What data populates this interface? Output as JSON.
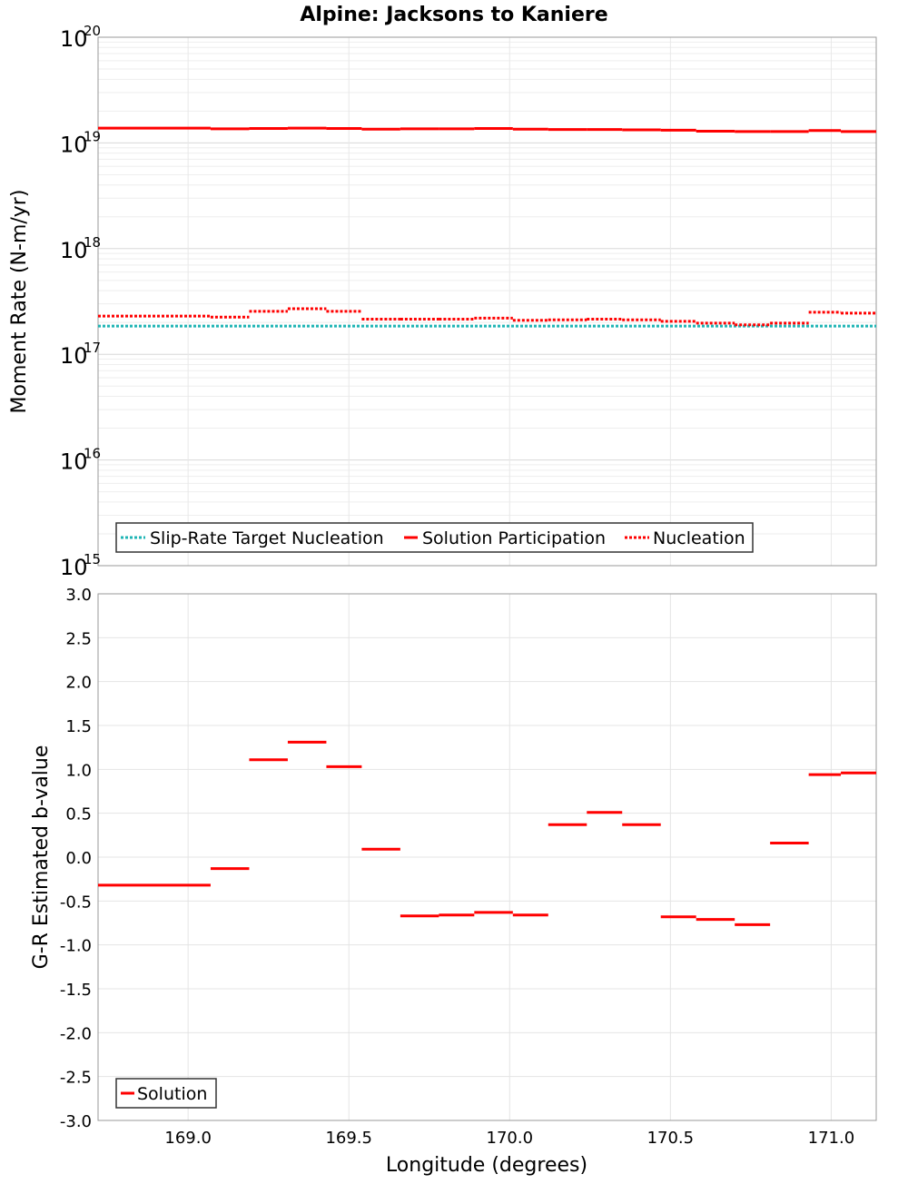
{
  "chart_data": [
    {
      "type": "line",
      "title": "Alpine: Jacksons to Kaniere",
      "ylabel": "Moment Rate (N-m/yr)",
      "xlabel": "",
      "yscale": "log",
      "ylim": [
        1000000000000000.0,
        1e+20
      ],
      "xlim": [
        168.72,
        171.14
      ],
      "grid": true,
      "legend_position": "bottom-left",
      "y_ticks": [
        {
          "base": "10",
          "exp": "15",
          "value": 1000000000000000.0
        },
        {
          "base": "10",
          "exp": "16",
          "value": 1e+16
        },
        {
          "base": "10",
          "exp": "17",
          "value": 1e+17
        },
        {
          "base": "10",
          "exp": "18",
          "value": 1e+18
        },
        {
          "base": "10",
          "exp": "19",
          "value": 1e+19
        },
        {
          "base": "10",
          "exp": "20",
          "value": 1e+20
        }
      ],
      "series": [
        {
          "name": "Slip-Rate Target Nucleation",
          "color": "#1fb5b5",
          "style": "dotted",
          "segments": [
            [
              168.72,
              171.14,
              1.85e+17
            ]
          ]
        },
        {
          "name": "Solution Participation",
          "color": "#ff0000",
          "style": "solid",
          "segments": [
            [
              168.72,
              169.07,
              1.38e+19
            ],
            [
              169.07,
              169.19,
              1.36e+19
            ],
            [
              169.19,
              169.31,
              1.37e+19
            ],
            [
              169.31,
              169.43,
              1.38e+19
            ],
            [
              169.43,
              169.54,
              1.37e+19
            ],
            [
              169.54,
              169.66,
              1.35e+19
            ],
            [
              169.66,
              169.78,
              1.36e+19
            ],
            [
              169.78,
              169.89,
              1.36e+19
            ],
            [
              169.89,
              170.01,
              1.37e+19
            ],
            [
              170.01,
              170.12,
              1.35e+19
            ],
            [
              170.12,
              170.24,
              1.34e+19
            ],
            [
              170.24,
              170.35,
              1.34e+19
            ],
            [
              170.35,
              170.47,
              1.33e+19
            ],
            [
              170.47,
              170.58,
              1.32e+19
            ],
            [
              170.58,
              170.7,
              1.29e+19
            ],
            [
              170.7,
              170.81,
              1.28e+19
            ],
            [
              170.81,
              170.93,
              1.28e+19
            ],
            [
              170.93,
              171.03,
              1.31e+19
            ],
            [
              171.03,
              171.14,
              1.28e+19
            ]
          ]
        },
        {
          "name": "Nucleation",
          "color": "#ff0000",
          "style": "dotted",
          "segments": [
            [
              168.72,
              169.07,
              2.3e+17
            ],
            [
              169.07,
              169.19,
              2.25e+17
            ],
            [
              169.19,
              169.31,
              2.55e+17
            ],
            [
              169.31,
              169.43,
              2.7e+17
            ],
            [
              169.43,
              169.54,
              2.55e+17
            ],
            [
              169.54,
              169.66,
              2.15e+17
            ],
            [
              169.66,
              169.78,
              2.15e+17
            ],
            [
              169.78,
              169.89,
              2.15e+17
            ],
            [
              169.89,
              170.01,
              2.2e+17
            ],
            [
              170.01,
              170.12,
              2.1e+17
            ],
            [
              170.12,
              170.24,
              2.12e+17
            ],
            [
              170.24,
              170.35,
              2.15e+17
            ],
            [
              170.35,
              170.47,
              2.12e+17
            ],
            [
              170.47,
              170.58,
              2.05e+17
            ],
            [
              170.58,
              170.7,
              1.97e+17
            ],
            [
              170.7,
              170.81,
              1.9e+17
            ],
            [
              170.81,
              170.93,
              1.97e+17
            ],
            [
              170.93,
              171.03,
              2.5e+17
            ],
            [
              171.03,
              171.14,
              2.45e+17
            ]
          ]
        }
      ]
    },
    {
      "type": "line",
      "title": "",
      "ylabel": "G-R Estimated b-value",
      "xlabel": "Longitude (degrees)",
      "ylim": [
        -3.0,
        3.0
      ],
      "xlim": [
        168.72,
        171.14
      ],
      "grid": true,
      "legend_position": "bottom-left",
      "y_ticks": [
        "-3.0",
        "-2.5",
        "-2.0",
        "-1.5",
        "-1.0",
        "-0.5",
        "0.0",
        "0.5",
        "1.0",
        "1.5",
        "2.0",
        "2.5",
        "3.0"
      ],
      "x_ticks": [
        "169.0",
        "169.5",
        "170.0",
        "170.5",
        "171.0"
      ],
      "series": [
        {
          "name": "Solution",
          "color": "#ff0000",
          "style": "solid",
          "segments": [
            [
              168.72,
              169.07,
              -0.32
            ],
            [
              169.07,
              169.19,
              -0.13
            ],
            [
              169.19,
              169.31,
              1.11
            ],
            [
              169.31,
              169.43,
              1.31
            ],
            [
              169.43,
              169.54,
              1.03
            ],
            [
              169.54,
              169.66,
              0.09
            ],
            [
              169.66,
              169.78,
              -0.67
            ],
            [
              169.78,
              169.89,
              -0.66
            ],
            [
              169.89,
              170.01,
              -0.63
            ],
            [
              170.01,
              170.12,
              -0.66
            ],
            [
              170.12,
              170.24,
              0.37
            ],
            [
              170.24,
              170.35,
              0.51
            ],
            [
              170.35,
              170.47,
              0.37
            ],
            [
              170.47,
              170.58,
              -0.68
            ],
            [
              170.58,
              170.7,
              -0.71
            ],
            [
              170.7,
              170.81,
              -0.77
            ],
            [
              170.81,
              170.93,
              0.16
            ],
            [
              170.93,
              171.03,
              0.94
            ],
            [
              171.03,
              171.14,
              0.96
            ]
          ]
        }
      ]
    }
  ]
}
